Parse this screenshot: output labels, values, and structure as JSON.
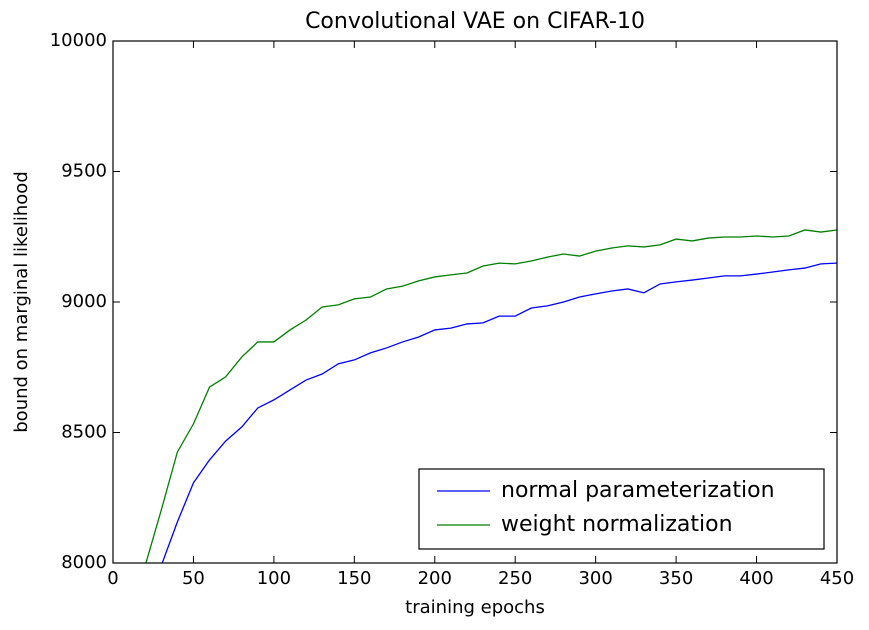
{
  "chart_data": {
    "type": "line",
    "title": "Convolutional VAE on CIFAR-10",
    "x_label": "training epochs",
    "y_label": "bound on marginal likelihood",
    "x": [
      20,
      30,
      40,
      50,
      60,
      70,
      80,
      90,
      100,
      110,
      120,
      130,
      140,
      150,
      160,
      170,
      180,
      190,
      200,
      210,
      220,
      230,
      240,
      250,
      260,
      270,
      280,
      290,
      300,
      310,
      320,
      330,
      340,
      350,
      360,
      370,
      380,
      390,
      400,
      410,
      420,
      430,
      440,
      450
    ],
    "series": [
      {
        "name": "normal parameterization",
        "color": "#0000ff",
        "values": [
          null,
          7990,
          8157,
          8307,
          8395,
          8467,
          8521,
          8594,
          8625,
          8663,
          8701,
          8724,
          8763,
          8778,
          8805,
          8824,
          8847,
          8866,
          8893,
          8900,
          8916,
          8920,
          8946,
          8946,
          8977,
          8985,
          9000,
          9019,
          9031,
          9042,
          9050,
          9035,
          9069,
          9077,
          9084,
          9092,
          9100,
          9100,
          9107,
          9115,
          9123,
          9130,
          9146,
          9149
        ]
      },
      {
        "name": "weight normalization",
        "color": "#008000",
        "values": [
          7990,
          8203,
          8425,
          8533,
          8674,
          8713,
          8789,
          8847,
          8847,
          8893,
          8931,
          8981,
          8989,
          9012,
          9019,
          9050,
          9061,
          9081,
          9096,
          9104,
          9111,
          9138,
          9149,
          9146,
          9157,
          9172,
          9184,
          9176,
          9195,
          9207,
          9215,
          9211,
          9219,
          9241,
          9234,
          9245,
          9249,
          9249,
          9253,
          9249,
          9253,
          9276,
          9268,
          9276
        ]
      }
    ],
    "xlim": [
      0,
      450
    ],
    "xticks": [
      0,
      50,
      100,
      150,
      200,
      250,
      300,
      350,
      400,
      450
    ],
    "ylim": [
      8000,
      10000
    ],
    "yticks": [
      8000,
      8500,
      9000,
      9500,
      10000
    ],
    "grid": false,
    "legend": "lower right"
  }
}
